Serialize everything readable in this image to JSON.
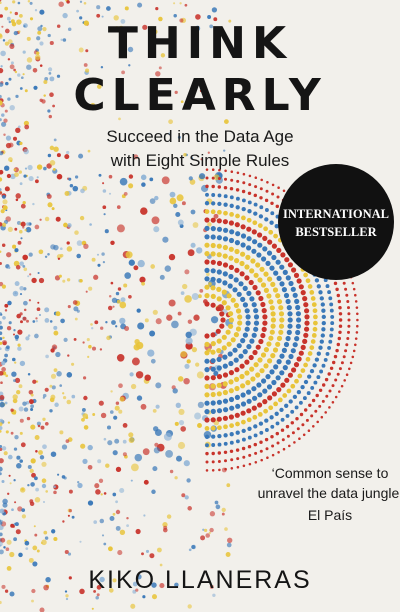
{
  "cover": {
    "title": [
      "THINK",
      "CLEARLY"
    ],
    "subtitle": [
      "Succeed in the Data Age",
      "with Eight Simple Rules"
    ],
    "badge": [
      "INTERNATIONAL",
      "BESTSELLER"
    ],
    "quote": [
      "‘Common sense to",
      "unravel the data jungle’"
    ],
    "quote_source": "El País",
    "author": "KIKO LLANERAS"
  }
}
